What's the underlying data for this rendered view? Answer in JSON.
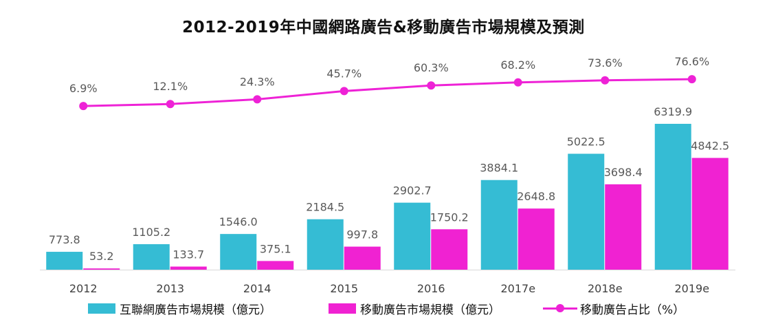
{
  "title": "2012-2019年中國網路廣告&移動廣告市場規模及預測",
  "colors": {
    "internet": "#35bcd4",
    "mobile": "#f022d2",
    "share": "#ee22d6",
    "axis": "#d9d9d9"
  },
  "chart_data": {
    "type": "bar+line",
    "categories": [
      "2012",
      "2013",
      "2014",
      "2015",
      "2016",
      "2017e",
      "2018e",
      "2019e"
    ],
    "series": [
      {
        "name": "互聯網廣告市場規模（億元）",
        "type": "bar",
        "values": [
          773.8,
          1105.2,
          1546.0,
          2184.5,
          2902.7,
          3884.1,
          5022.5,
          6319.9
        ],
        "labels": [
          "773.8",
          "1105.2",
          "1546.0",
          "2184.5",
          "2902.7",
          "3884.1",
          "5022.5",
          "6319.9"
        ]
      },
      {
        "name": "移動廣告市場規模（億元）",
        "type": "bar",
        "values": [
          53.2,
          133.7,
          375.1,
          997.8,
          1750.2,
          2648.8,
          3698.4,
          4842.5
        ],
        "labels": [
          "53.2",
          "133.7",
          "375.1",
          "997.8",
          "1750.2",
          "2648.8",
          "3698.4",
          "4842.5"
        ]
      },
      {
        "name": "移動廣告占比（%）",
        "type": "line",
        "values": [
          6.9,
          12.1,
          24.3,
          45.7,
          60.3,
          68.2,
          73.6,
          76.6
        ],
        "labels": [
          "6.9%",
          "12.1%",
          "24.3%",
          "45.7%",
          "60.3%",
          "68.2%",
          "73.6%",
          "76.6%"
        ]
      }
    ],
    "legend_position": "bottom",
    "grid": false
  }
}
